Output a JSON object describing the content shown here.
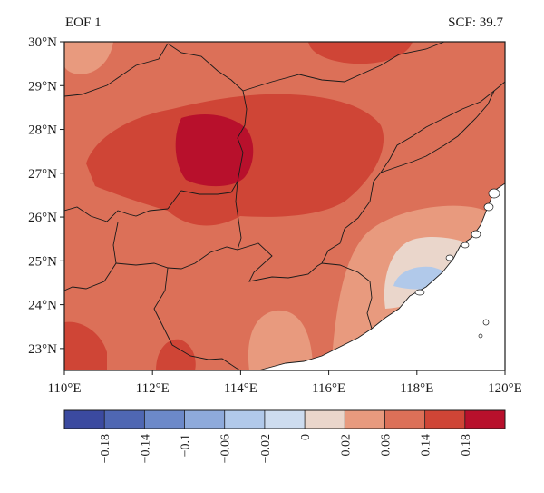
{
  "header": {
    "title": "EOF 1",
    "scf_label": "SCF: 39.7"
  },
  "map": {
    "lat_ticks": [
      "30°N",
      "29°N",
      "28°N",
      "27°N",
      "26°N",
      "25°N",
      "24°N",
      "23°N"
    ],
    "lon_ticks": [
      "110°E",
      "112°E",
      "114°E",
      "116°E",
      "118°E",
      "120°E"
    ],
    "lat_range": [
      22.5,
      30
    ],
    "lon_range": [
      110,
      120
    ]
  },
  "colorbar": {
    "colors": [
      "#3b4aa0",
      "#4f67b3",
      "#6c89c9",
      "#8eaadb",
      "#b1c9ea",
      "#cddcef",
      "#ead6cb",
      "#e89a7e",
      "#dc7058",
      "#cf4536",
      "#b8102c"
    ],
    "tick_labels": [
      "−0.18",
      "−0.14",
      "−0.1",
      "−0.06",
      "−0.02",
      "0",
      "0.02",
      "0.06",
      "0.14",
      "0.18"
    ]
  },
  "palette": {
    "base": "#dc7058",
    "light": "#e89a7e",
    "dark": "#cf4536",
    "deep": "#b8102c",
    "pale": "#ead6cb",
    "blue": "#b1c9ea",
    "sea": "#ffffff"
  }
}
